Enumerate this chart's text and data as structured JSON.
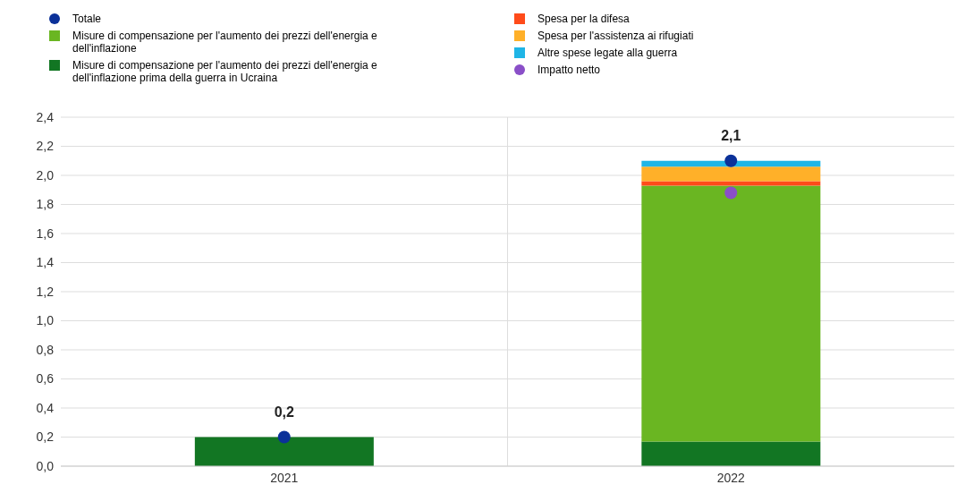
{
  "chart_data": {
    "type": "bar",
    "stacked": true,
    "categories": [
      "2021",
      "2022"
    ],
    "series": [
      {
        "name": "Totale",
        "type": "scatter",
        "color": "#0b3199",
        "values": [
          0.2,
          2.1
        ],
        "value_labels": [
          "0,2",
          "2,1"
        ]
      },
      {
        "name": "Misure di compensazione per l'aumento dei prezzi dell'energia e dell'inflazione prima della guerra in Ucraina",
        "color": "#127623",
        "values": [
          0.2,
          0.17
        ]
      },
      {
        "name": "Misure di compensazione per l'aumento dei prezzi dell'energia e dell'inflazione",
        "color": "#6ab622",
        "values": [
          null,
          1.76
        ]
      },
      {
        "name": "Spesa per la difesa",
        "color": "#ff4b1a",
        "values": [
          null,
          0.03
        ]
      },
      {
        "name": "Spesa per l'assistenza ai rifugiati",
        "color": "#ffb029",
        "values": [
          null,
          0.1
        ]
      },
      {
        "name": "Altre spese legate alla guerra",
        "color": "#1fb5e6",
        "values": [
          null,
          0.04
        ]
      },
      {
        "name": "Impatto netto",
        "type": "scatter",
        "color": "#8a4fc8",
        "values": [
          null,
          1.88
        ]
      }
    ],
    "ylim": [
      0,
      2.4
    ],
    "yticks": [
      {
        "value": 0,
        "label": "0,0"
      },
      {
        "value": 0.2,
        "label": "0,2"
      },
      {
        "value": 0.4,
        "label": "0,4"
      },
      {
        "value": 0.6,
        "label": "0,6"
      },
      {
        "value": 0.8,
        "label": "0,8"
      },
      {
        "value": 1.0,
        "label": "1,0"
      },
      {
        "value": 1.2,
        "label": "1,2"
      },
      {
        "value": 1.4,
        "label": "1,4"
      },
      {
        "value": 1.6,
        "label": "1,6"
      },
      {
        "value": 1.8,
        "label": "1,8"
      },
      {
        "value": 2.0,
        "label": "2,0"
      },
      {
        "value": 2.2,
        "label": "2,2"
      },
      {
        "value": 2.4,
        "label": "2,4"
      }
    ],
    "grid": true,
    "legend": "top",
    "marker": "circle"
  }
}
